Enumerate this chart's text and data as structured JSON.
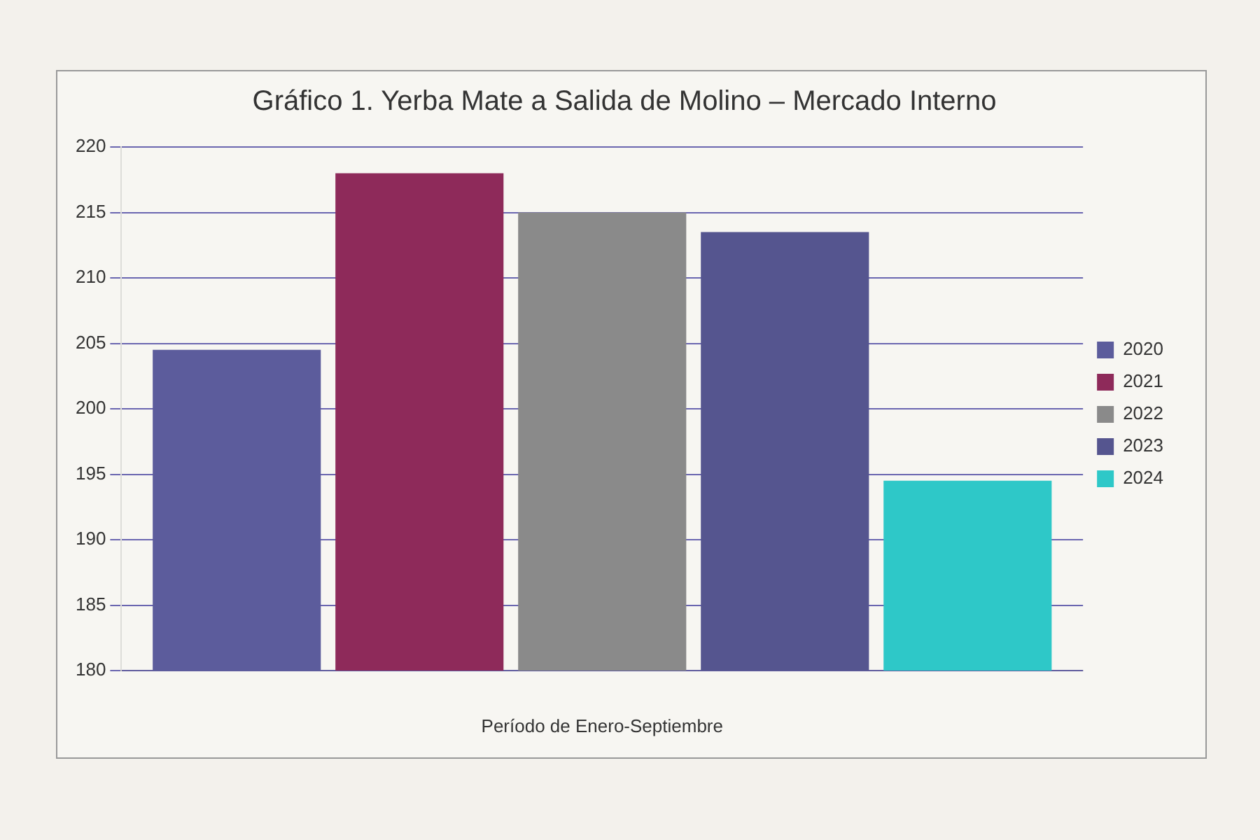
{
  "chart_data": {
    "type": "bar",
    "title": "Gráfico 1. Yerba Mate a Salida de Molino – Mercado Interno",
    "xlabel": "Período de Enero-Septiembre",
    "categories": [
      null
    ],
    "series": [
      {
        "name": "2020",
        "color": "#5c5c9c",
        "values": [
          204.5
        ]
      },
      {
        "name": "2021",
        "color": "#8e2a5a",
        "values": [
          218
        ]
      },
      {
        "name": "2022",
        "color": "#8a8a8a",
        "values": [
          215
        ]
      },
      {
        "name": "2023",
        "color": "#55558f",
        "values": [
          213.5
        ]
      },
      {
        "name": "2024",
        "color": "#2ec8c8",
        "values": [
          194.5
        ]
      }
    ],
    "ylim": [
      180,
      220
    ],
    "yticks": [
      180,
      185,
      190,
      195,
      200,
      205,
      210,
      215,
      220
    ],
    "grid": "y",
    "legend": "right"
  }
}
